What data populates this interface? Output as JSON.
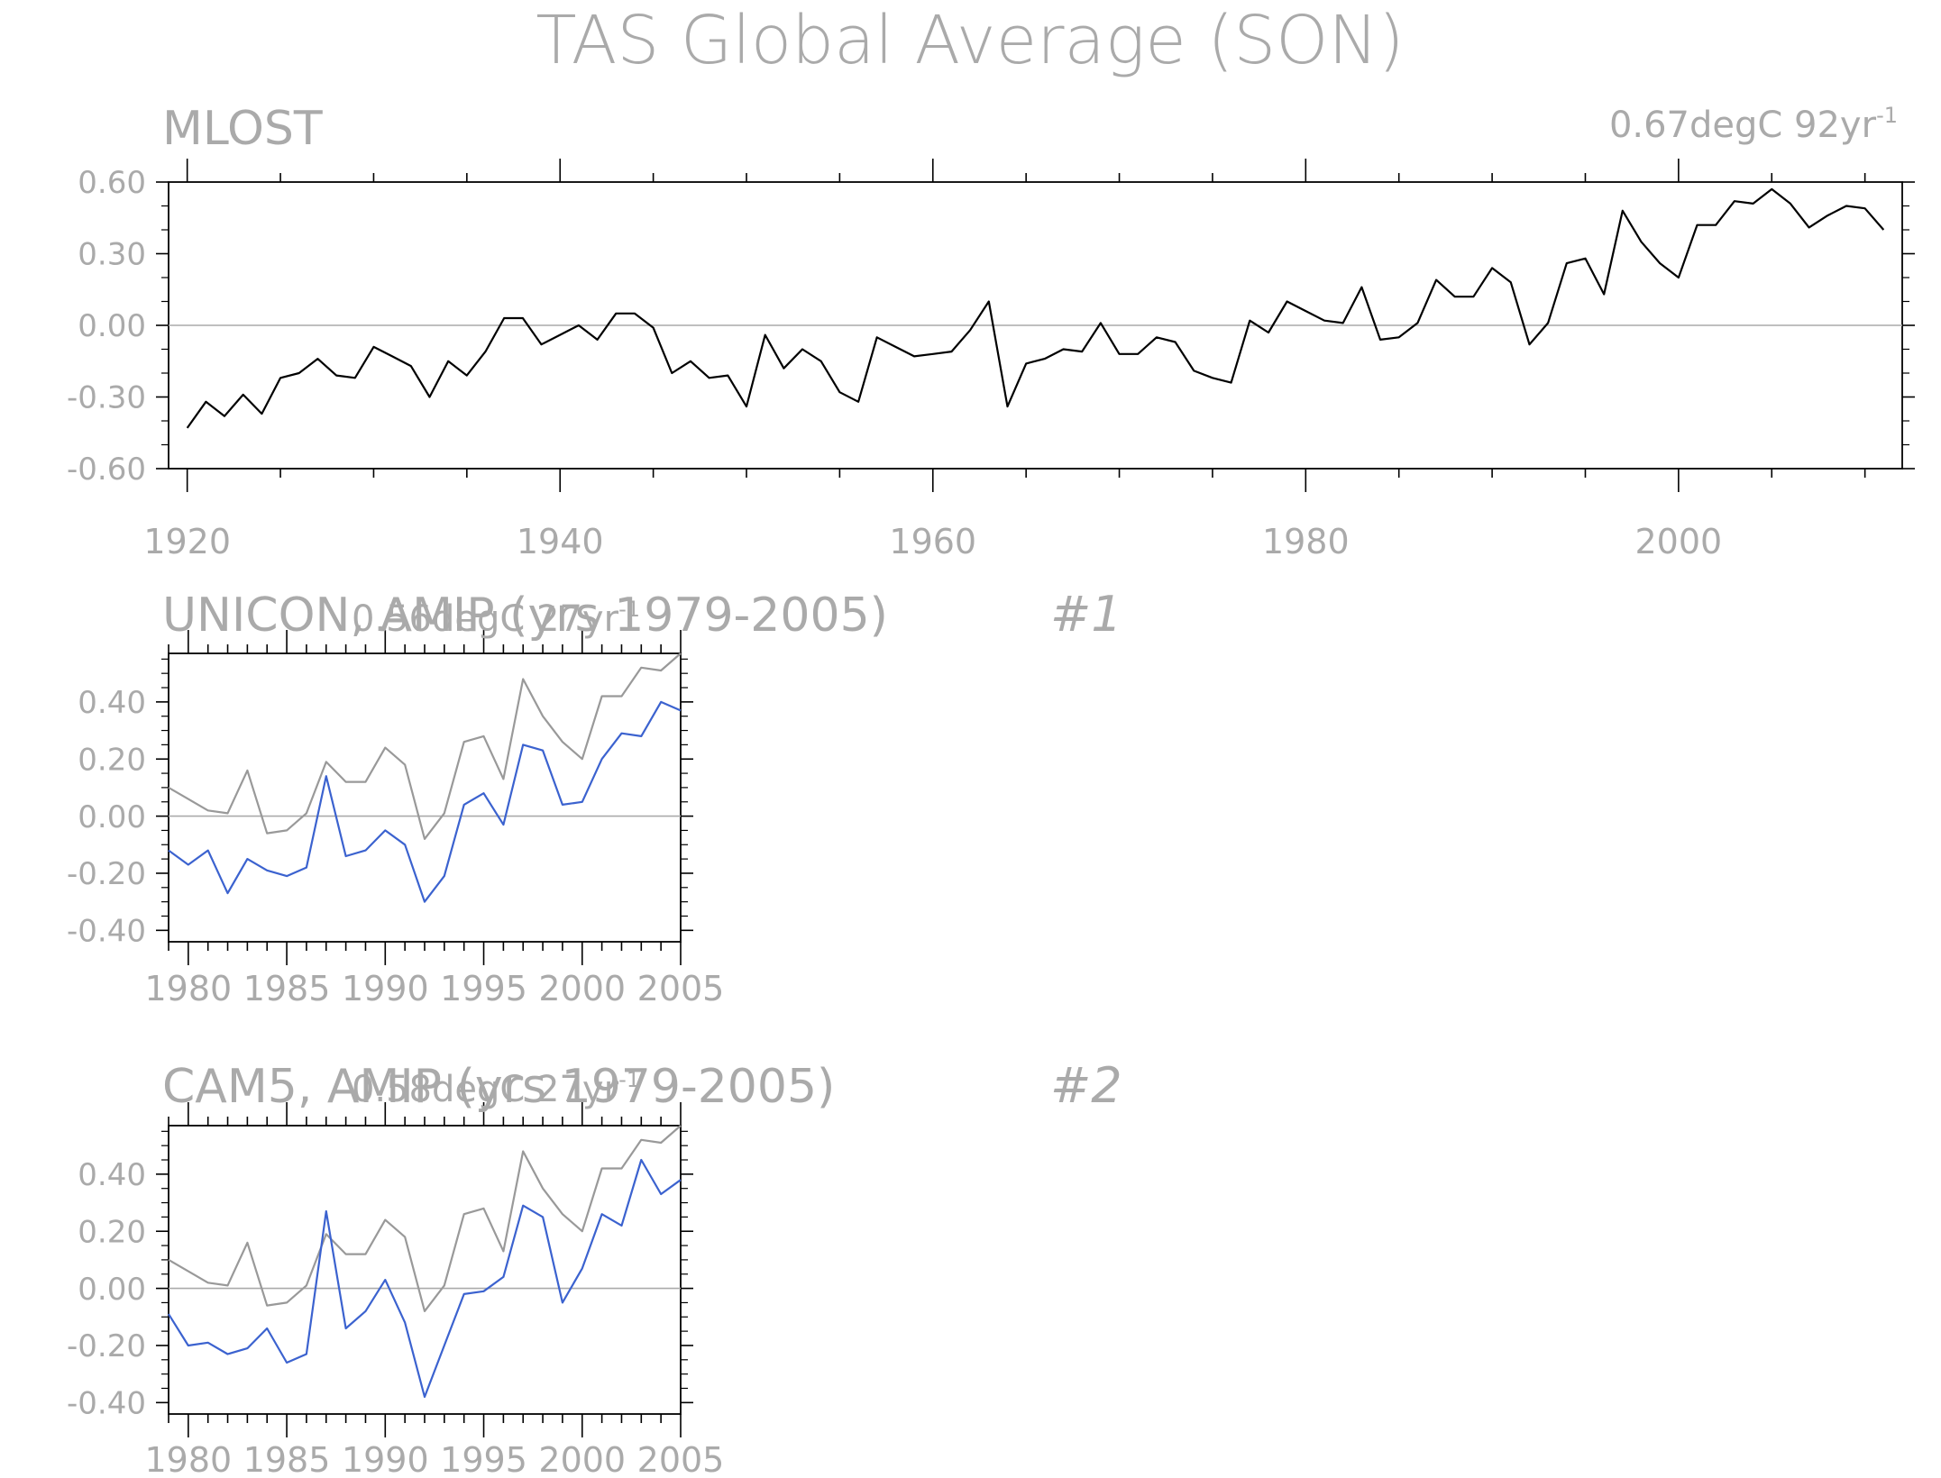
{
  "figure": {
    "title": "TAS Global Average (SON)"
  },
  "chart_data": [
    {
      "type": "line",
      "title": "MLOST",
      "trend_label": "0.67degC 92yr",
      "trend_label_sup": "-1",
      "x_ticks": [
        1920,
        1940,
        1960,
        1980,
        2000
      ],
      "y_ticks": [
        "0.60",
        "0.30",
        "0.00",
        "-0.30",
        "-0.60"
      ],
      "xlim": [
        1919,
        2012
      ],
      "ylim": [
        -0.6,
        0.6
      ],
      "series": [
        {
          "color": "#000000",
          "x": [
            1920,
            1921,
            1922,
            1923,
            1924,
            1925,
            1926,
            1927,
            1928,
            1929,
            1930,
            1931,
            1932,
            1933,
            1934,
            1935,
            1936,
            1937,
            1938,
            1939,
            1940,
            1941,
            1942,
            1943,
            1944,
            1945,
            1946,
            1947,
            1948,
            1949,
            1950,
            1951,
            1952,
            1953,
            1954,
            1955,
            1956,
            1957,
            1958,
            1959,
            1960,
            1961,
            1962,
            1963,
            1964,
            1965,
            1966,
            1967,
            1968,
            1969,
            1970,
            1971,
            1972,
            1973,
            1974,
            1975,
            1976,
            1977,
            1978,
            1979,
            1980,
            1981,
            1982,
            1983,
            1984,
            1985,
            1986,
            1987,
            1988,
            1989,
            1990,
            1991,
            1992,
            1993,
            1994,
            1995,
            1996,
            1997,
            1998,
            1999,
            2000,
            2001,
            2002,
            2003,
            2004,
            2005,
            2006,
            2007,
            2008,
            2009,
            2010,
            2011
          ],
          "values": [
            -0.43,
            -0.32,
            -0.38,
            -0.29,
            -0.37,
            -0.22,
            -0.2,
            -0.14,
            -0.21,
            -0.22,
            -0.09,
            -0.13,
            -0.17,
            -0.3,
            -0.15,
            -0.21,
            -0.11,
            0.03,
            0.03,
            -0.08,
            -0.04,
            0.0,
            -0.06,
            0.05,
            0.05,
            -0.01,
            -0.2,
            -0.15,
            -0.22,
            -0.21,
            -0.34,
            -0.04,
            -0.18,
            -0.1,
            -0.15,
            -0.28,
            -0.32,
            -0.05,
            -0.09,
            -0.13,
            -0.12,
            -0.11,
            -0.02,
            0.1,
            -0.34,
            -0.16,
            -0.14,
            -0.1,
            -0.11,
            0.01,
            -0.12,
            -0.12,
            -0.05,
            -0.07,
            -0.19,
            -0.22,
            -0.24,
            0.02,
            -0.03,
            0.1,
            0.06,
            0.02,
            0.01,
            0.16,
            -0.06,
            -0.05,
            0.01,
            0.19,
            0.12,
            0.12,
            0.24,
            0.18,
            -0.08,
            0.01,
            0.26,
            0.28,
            0.13,
            0.48,
            0.35,
            0.26,
            0.2,
            0.42,
            0.42,
            0.52,
            0.51,
            0.57,
            0.51,
            0.41,
            0.46,
            0.5,
            0.49,
            0.4
          ]
        }
      ]
    },
    {
      "type": "line",
      "title": "UNICON, AMIP (yrs 1979-2005)",
      "trend_label": "0.56degC 27yr",
      "trend_label_sup": "-1",
      "panel_id": "#1",
      "x_ticks": [
        1980,
        1985,
        1990,
        1995,
        2000,
        2005
      ],
      "y_ticks": [
        "0.40",
        "0.20",
        "0.00",
        "-0.20",
        "-0.40"
      ],
      "xlim": [
        1979,
        2005
      ],
      "ylim": [
        -0.44,
        0.57
      ],
      "series": [
        {
          "color": "#999999",
          "x": [
            1979,
            1980,
            1981,
            1982,
            1983,
            1984,
            1985,
            1986,
            1987,
            1988,
            1989,
            1990,
            1991,
            1992,
            1993,
            1994,
            1995,
            1996,
            1997,
            1998,
            1999,
            2000,
            2001,
            2002,
            2003,
            2004,
            2005
          ],
          "values": [
            0.1,
            0.06,
            0.02,
            0.01,
            0.16,
            -0.06,
            -0.05,
            0.01,
            0.19,
            0.12,
            0.12,
            0.24,
            0.18,
            -0.08,
            0.01,
            0.26,
            0.28,
            0.13,
            0.48,
            0.35,
            0.26,
            0.2,
            0.42,
            0.42,
            0.52,
            0.51,
            0.57
          ]
        },
        {
          "color": "#3b62cf",
          "x": [
            1979,
            1980,
            1981,
            1982,
            1983,
            1984,
            1985,
            1986,
            1987,
            1988,
            1989,
            1990,
            1991,
            1992,
            1993,
            1994,
            1995,
            1996,
            1997,
            1998,
            1999,
            2000,
            2001,
            2002,
            2003,
            2004,
            2005
          ],
          "values": [
            -0.12,
            -0.17,
            -0.12,
            -0.27,
            -0.15,
            -0.19,
            -0.21,
            -0.18,
            0.14,
            -0.14,
            -0.12,
            -0.05,
            -0.1,
            -0.3,
            -0.21,
            0.04,
            0.08,
            -0.03,
            0.25,
            0.23,
            0.04,
            0.05,
            0.2,
            0.29,
            0.28,
            0.4,
            0.37
          ]
        }
      ]
    },
    {
      "type": "line",
      "title": "CAM5, AMIP (yrs 1979-2005)",
      "trend_label": "0.58degC 27yr",
      "trend_label_sup": "-1",
      "panel_id": "#2",
      "x_ticks": [
        1980,
        1985,
        1990,
        1995,
        2000,
        2005
      ],
      "y_ticks": [
        "0.40",
        "0.20",
        "0.00",
        "-0.20",
        "-0.40"
      ],
      "xlim": [
        1979,
        2005
      ],
      "ylim": [
        -0.44,
        0.57
      ],
      "series": [
        {
          "color": "#999999",
          "x": [
            1979,
            1980,
            1981,
            1982,
            1983,
            1984,
            1985,
            1986,
            1987,
            1988,
            1989,
            1990,
            1991,
            1992,
            1993,
            1994,
            1995,
            1996,
            1997,
            1998,
            1999,
            2000,
            2001,
            2002,
            2003,
            2004,
            2005
          ],
          "values": [
            0.1,
            0.06,
            0.02,
            0.01,
            0.16,
            -0.06,
            -0.05,
            0.01,
            0.19,
            0.12,
            0.12,
            0.24,
            0.18,
            -0.08,
            0.01,
            0.26,
            0.28,
            0.13,
            0.48,
            0.35,
            0.26,
            0.2,
            0.42,
            0.42,
            0.52,
            0.51,
            0.57
          ]
        },
        {
          "color": "#3b62cf",
          "x": [
            1979,
            1980,
            1981,
            1982,
            1983,
            1984,
            1985,
            1986,
            1987,
            1988,
            1989,
            1990,
            1991,
            1992,
            1993,
            1994,
            1995,
            1996,
            1997,
            1998,
            1999,
            2000,
            2001,
            2002,
            2003,
            2004,
            2005
          ],
          "values": [
            -0.09,
            -0.2,
            -0.19,
            -0.23,
            -0.21,
            -0.14,
            -0.26,
            -0.23,
            0.27,
            -0.14,
            -0.08,
            0.03,
            -0.12,
            -0.38,
            -0.2,
            -0.02,
            -0.01,
            0.04,
            0.29,
            0.25,
            -0.05,
            0.07,
            0.26,
            0.22,
            0.45,
            0.33,
            0.38
          ]
        }
      ]
    }
  ]
}
